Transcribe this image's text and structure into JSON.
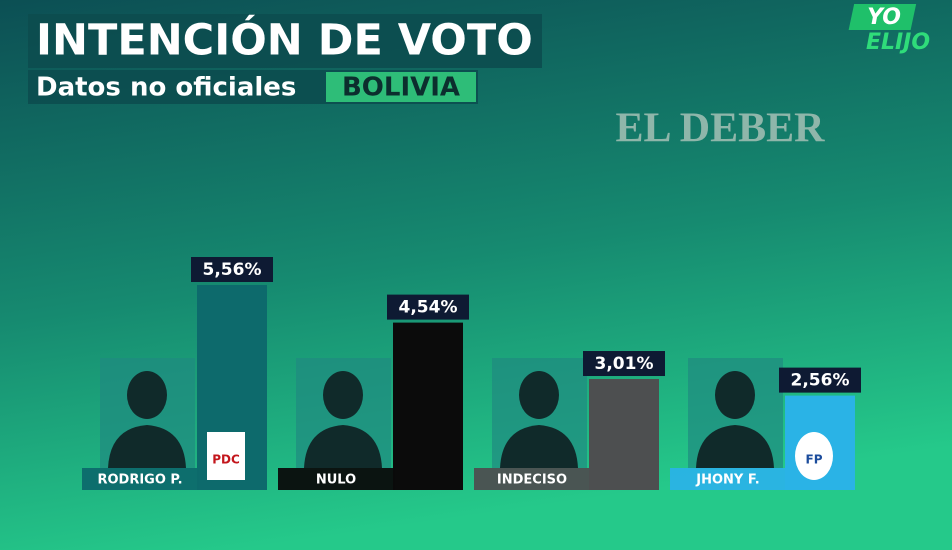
{
  "chart_data": {
    "type": "bar",
    "title": "INTENCIÓN DE VOTO",
    "subtitle": "Datos no oficiales",
    "region": "BOLIVIA",
    "source": "EL DEBER",
    "brand": [
      "YO",
      "ELIJO"
    ],
    "categories": [
      "RODRIGO P.",
      "NULO",
      "INDECISO",
      "JHONY F."
    ],
    "values": [
      5.56,
      4.54,
      3.01,
      2.56
    ],
    "value_labels": [
      "5,56%",
      "4,54%",
      "3,01%",
      "2,56%"
    ],
    "party_logos": [
      "PDC",
      null,
      null,
      "FP"
    ],
    "colors": [
      "#0d6a6c",
      "#0b0b0b",
      "#4d4f50",
      "#2ab3e6"
    ]
  }
}
